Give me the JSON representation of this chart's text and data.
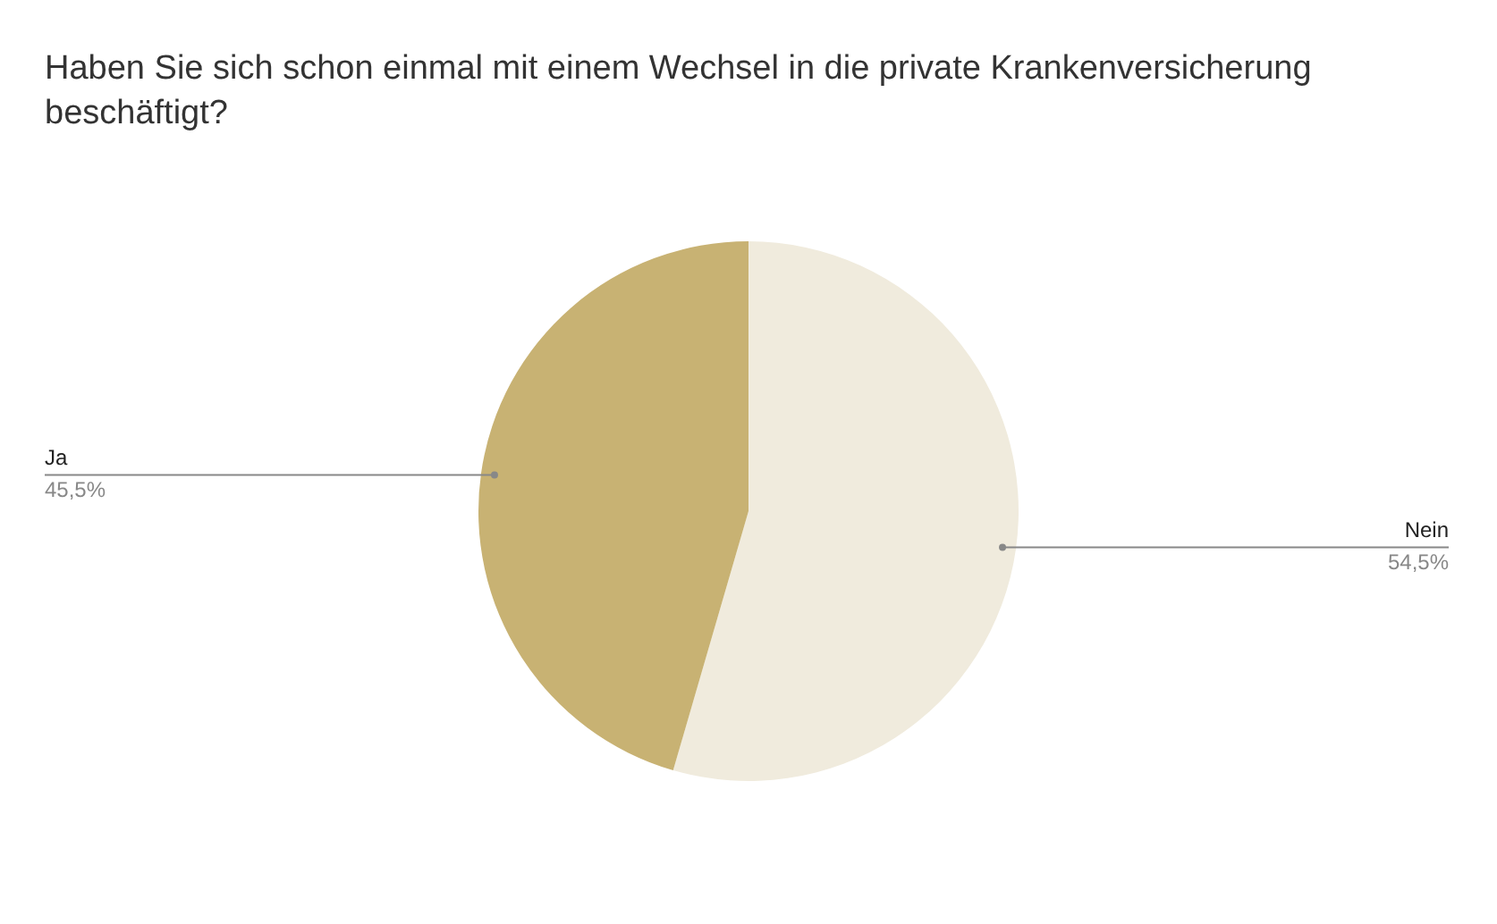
{
  "chart_data": {
    "type": "pie",
    "title": "Haben Sie sich schon einmal mit einem Wechsel in die private Krankenversicherung beschäftigt?",
    "categories": [
      "Nein",
      "Ja"
    ],
    "values": [
      54.5,
      45.5
    ],
    "colors": [
      "#f0ebdd",
      "#c8b273"
    ],
    "value_labels": [
      "54,5%",
      "45,5%"
    ]
  }
}
